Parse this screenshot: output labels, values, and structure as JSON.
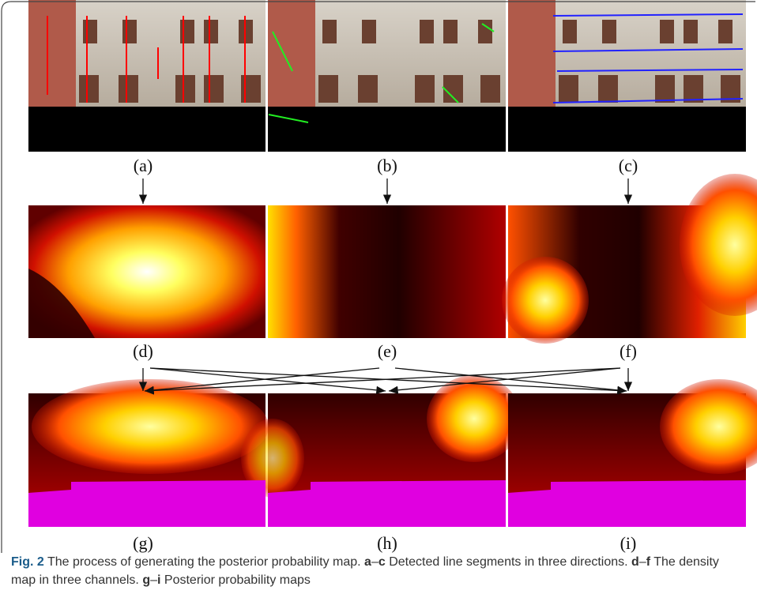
{
  "figure": {
    "panel_labels": [
      "(a)",
      "(b)",
      "(c)",
      "(d)",
      "(e)",
      "(f)",
      "(g)",
      "(h)",
      "(i)"
    ],
    "caption": [
      {
        "text": "Fig. 2",
        "bold": true
      },
      {
        "text": " The process of generating the posterior probability map. ",
        "bold": false
      },
      {
        "text": "a",
        "bold": true
      },
      {
        "text": "–",
        "bold": false
      },
      {
        "text": "c",
        "bold": true
      },
      {
        "text": " Detected line segments in three directions. ",
        "bold": false
      },
      {
        "text": "d",
        "bold": true
      },
      {
        "text": "–",
        "bold": false
      },
      {
        "text": "f",
        "bold": true
      },
      {
        "text": " The density map in three channels. ",
        "bold": false
      },
      {
        "text": "g",
        "bold": true
      },
      {
        "text": "–",
        "bold": false
      },
      {
        "text": "i",
        "bold": true
      },
      {
        "text": " Posterior probability maps",
        "bold": false
      }
    ]
  }
}
